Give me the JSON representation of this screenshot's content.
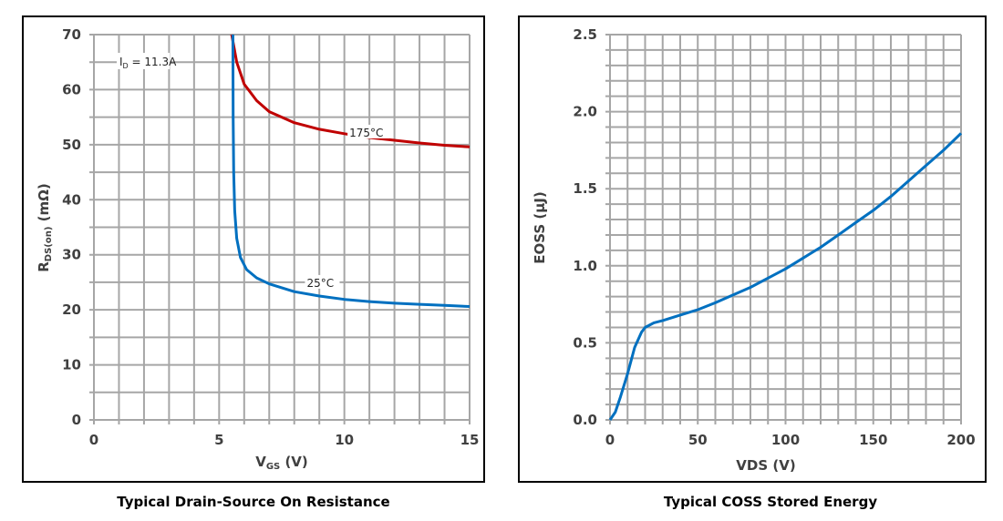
{
  "chart_data": [
    {
      "type": "line",
      "title": "Typical Drain-Source On Resistance",
      "xlabel": "V",
      "xlabel_sub": "GS",
      "xlabel_unit": " (V)",
      "ylabel": "R",
      "ylabel_sub": "DS(on)",
      "ylabel_unit": " (mΩ)",
      "xlim": [
        0,
        15
      ],
      "ylim": [
        0,
        70
      ],
      "xticks": [
        0,
        5,
        10,
        15
      ],
      "yticks": [
        0,
        10,
        20,
        30,
        40,
        50,
        60,
        70
      ],
      "grid": {
        "x_step": 1,
        "y_step": 5
      },
      "annotation": {
        "main": "I",
        "sub": "D",
        "rest": " = 11.3A"
      },
      "series": [
        {
          "name": "175°C",
          "color": "#c00000",
          "x": [
            5.5,
            5.7,
            6,
            6.5,
            7,
            8,
            9,
            10,
            11,
            12,
            13,
            14,
            15
          ],
          "y": [
            70,
            65,
            61,
            58,
            56,
            54,
            52.8,
            52,
            51.3,
            50.8,
            50.3,
            49.9,
            49.6
          ]
        },
        {
          "name": "25°C",
          "color": "#0070c0",
          "x": [
            5.55,
            5.56,
            5.58,
            5.62,
            5.7,
            5.85,
            6.1,
            6.5,
            7,
            8,
            9,
            10,
            11,
            12,
            13,
            14,
            15
          ],
          "y": [
            70,
            55,
            45,
            38,
            33,
            29.5,
            27.3,
            25.8,
            24.7,
            23.3,
            22.5,
            21.9,
            21.5,
            21.2,
            21,
            20.8,
            20.6
          ]
        }
      ]
    },
    {
      "type": "line",
      "title": "Typical COSS Stored Energy",
      "xlabel": "VDS (V)",
      "ylabel": "EOSS (µJ)",
      "xlim": [
        0,
        200
      ],
      "ylim": [
        0,
        2.5
      ],
      "xticks": [
        0,
        50,
        100,
        150,
        200
      ],
      "yticks": [
        "0.0",
        "0.5",
        "1.0",
        "1.5",
        "2.0",
        "2.5"
      ],
      "grid": {
        "x_step": 10,
        "y_step": 0.1
      },
      "series": [
        {
          "color": "#0070c0",
          "x": [
            0,
            3,
            6,
            10,
            14,
            18,
            20,
            25,
            30,
            40,
            50,
            60,
            70,
            80,
            90,
            100,
            110,
            120,
            130,
            140,
            150,
            160,
            170,
            180,
            190,
            200
          ],
          "y": [
            0,
            0.05,
            0.15,
            0.3,
            0.47,
            0.57,
            0.6,
            0.63,
            0.645,
            0.68,
            0.715,
            0.76,
            0.81,
            0.86,
            0.92,
            0.98,
            1.05,
            1.12,
            1.2,
            1.28,
            1.36,
            1.45,
            1.55,
            1.65,
            1.75,
            1.86
          ]
        }
      ]
    }
  ]
}
